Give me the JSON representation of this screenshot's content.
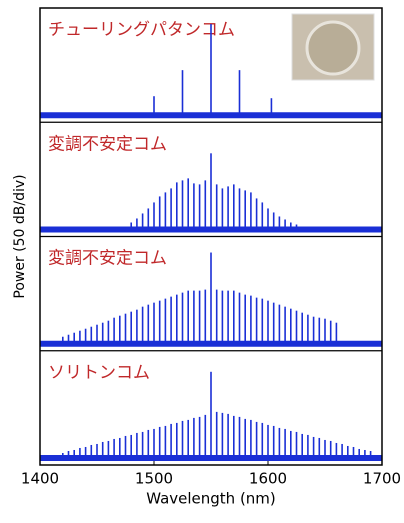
{
  "chart_data": [
    {
      "type": "comb",
      "title": "チューリングパタンコム",
      "ylabel": "Power (50 dB/div)",
      "color": "#1a2fd6",
      "x": [
        1500,
        1525,
        1550,
        1575,
        1603
      ],
      "values": [
        18,
        44,
        90,
        44,
        16
      ],
      "xlim": [
        1400,
        1700
      ],
      "ylim": [
        0,
        100
      ]
    },
    {
      "type": "comb",
      "title": "変調不安定コム",
      "color": "#1a2fd6",
      "x": [
        1480,
        1485,
        1490,
        1495,
        1500,
        1505,
        1510,
        1515,
        1520,
        1525,
        1530,
        1535,
        1540,
        1545,
        1550,
        1555,
        1560,
        1565,
        1570,
        1575,
        1580,
        1585,
        1590,
        1595,
        1600,
        1605,
        1610,
        1615,
        1620,
        1625
      ],
      "values": [
        6,
        10,
        15,
        20,
        26,
        32,
        36,
        40,
        46,
        48,
        50,
        45,
        44,
        48,
        75,
        44,
        40,
        42,
        44,
        40,
        38,
        36,
        30,
        26,
        20,
        16,
        12,
        9,
        6,
        4
      ],
      "xlim": [
        1400,
        1700
      ],
      "ylim": [
        0,
        100
      ]
    },
    {
      "type": "comb",
      "title": "変調不安定コム",
      "color": "#1a2fd6",
      "x": [
        1420,
        1425,
        1430,
        1435,
        1440,
        1445,
        1450,
        1455,
        1460,
        1465,
        1470,
        1475,
        1480,
        1485,
        1490,
        1495,
        1500,
        1505,
        1510,
        1515,
        1520,
        1525,
        1530,
        1535,
        1540,
        1545,
        1550,
        1555,
        1560,
        1565,
        1570,
        1575,
        1580,
        1585,
        1590,
        1595,
        1600,
        1605,
        1610,
        1615,
        1620,
        1625,
        1630,
        1635,
        1640,
        1645,
        1650,
        1655,
        1660
      ],
      "values": [
        6,
        8,
        10,
        12,
        14,
        16,
        18,
        20,
        22,
        25,
        27,
        29,
        31,
        33,
        36,
        38,
        40,
        42,
        44,
        46,
        48,
        50,
        52,
        52,
        52,
        53,
        90,
        53,
        52,
        52,
        52,
        50,
        48,
        47,
        45,
        44,
        42,
        40,
        38,
        36,
        34,
        32,
        30,
        28,
        26,
        25,
        24,
        22,
        20
      ],
      "xlim": [
        1400,
        1700
      ],
      "ylim": [
        0,
        100
      ]
    },
    {
      "type": "comb",
      "title": "ソリトンコム",
      "xlabel": "Wavelength (nm)",
      "color": "#1a2fd6",
      "x": [
        1420,
        1425,
        1430,
        1435,
        1440,
        1445,
        1450,
        1455,
        1460,
        1465,
        1470,
        1475,
        1480,
        1485,
        1490,
        1495,
        1500,
        1505,
        1510,
        1515,
        1520,
        1525,
        1530,
        1535,
        1540,
        1545,
        1550,
        1555,
        1560,
        1565,
        1570,
        1575,
        1580,
        1585,
        1590,
        1595,
        1600,
        1605,
        1610,
        1615,
        1620,
        1625,
        1630,
        1635,
        1640,
        1645,
        1650,
        1655,
        1660,
        1665,
        1670,
        1675,
        1680,
        1685,
        1690
      ],
      "values": [
        4,
        6,
        7,
        9,
        10,
        12,
        13,
        15,
        16,
        18,
        19,
        21,
        22,
        24,
        25,
        27,
        28,
        30,
        31,
        33,
        34,
        36,
        37,
        39,
        40,
        42,
        85,
        45,
        44,
        43,
        41,
        40,
        38,
        37,
        35,
        34,
        32,
        31,
        29,
        28,
        26,
        25,
        23,
        22,
        20,
        19,
        17,
        16,
        14,
        13,
        11,
        10,
        8,
        7,
        6
      ],
      "xlim": [
        1400,
        1700
      ],
      "ylim": [
        0,
        100
      ],
      "xticks": [
        1400,
        1500,
        1600,
        1700
      ]
    }
  ]
}
